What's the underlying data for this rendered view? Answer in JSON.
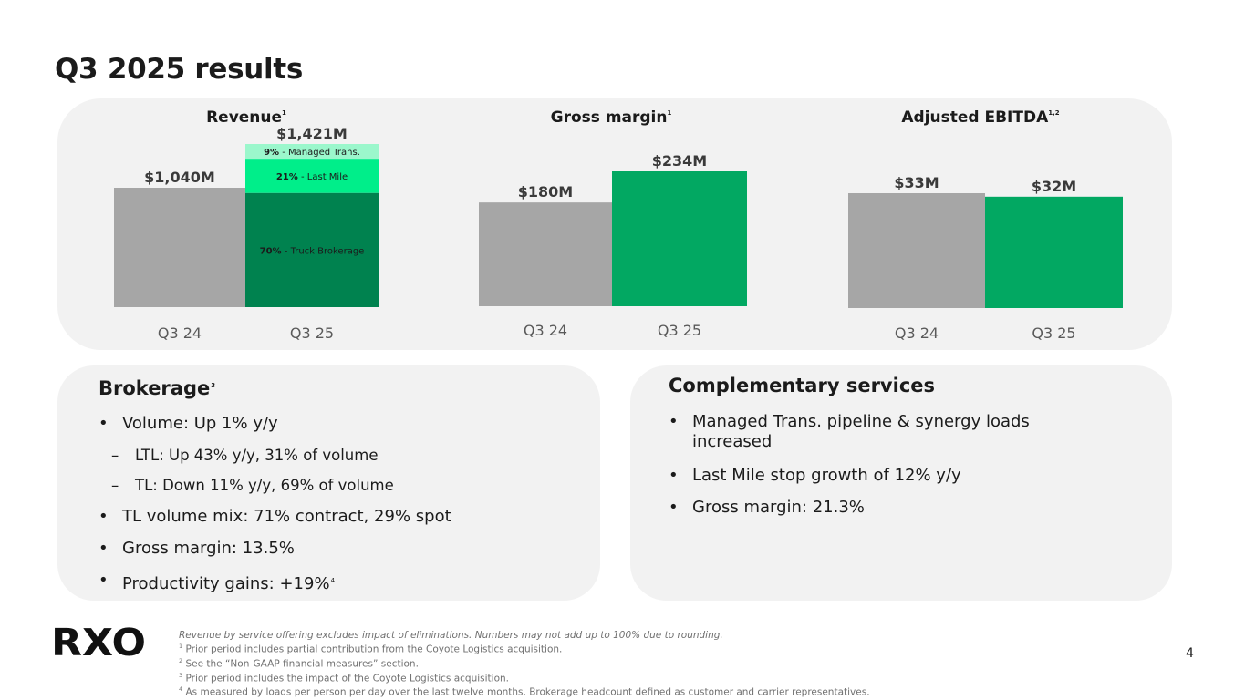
{
  "title": "Q3 2025 results",
  "colors": {
    "prior": "#a6a6a6",
    "current": "#02a862",
    "truck_brokerage": "#00824f",
    "last_mile": "#00ee8a",
    "managed_trans": "#9bf7cc",
    "panel": "#f2f2f2"
  },
  "chart_data": [
    {
      "type": "bar",
      "title": "Revenue",
      "title_sup": "1",
      "categories": [
        "Q3 24",
        "Q3 25"
      ],
      "values": [
        1040,
        1421
      ],
      "value_labels": [
        "$1,040M",
        "$1,421M"
      ],
      "unit": "$M",
      "stacked_breakdown": {
        "category": "Q3 25",
        "segments": [
          {
            "pct": 70,
            "pct_label": "70%",
            "name": "Truck Brokerage",
            "color": "#00824f"
          },
          {
            "pct": 21,
            "pct_label": "21%",
            "name": "Last Mile",
            "color": "#00ee8a"
          },
          {
            "pct": 9,
            "pct_label": "9%",
            "name": "Managed Trans.",
            "color": "#9bf7cc"
          }
        ]
      }
    },
    {
      "type": "bar",
      "title": "Gross margin",
      "title_sup": "1",
      "categories": [
        "Q3 24",
        "Q3 25"
      ],
      "values": [
        180,
        234
      ],
      "value_labels": [
        "$180M",
        "$234M"
      ],
      "unit": "$M"
    },
    {
      "type": "bar",
      "title": "Adjusted EBITDA",
      "title_sup": "1,2",
      "categories": [
        "Q3 24",
        "Q3 25"
      ],
      "values": [
        33,
        32
      ],
      "value_labels": [
        "$33M",
        "$32M"
      ],
      "unit": "$M"
    }
  ],
  "brokerage": {
    "title": "Brokerage",
    "title_sup": "3",
    "bullets": [
      {
        "text": "Volume: Up 1% y/y",
        "level": 1
      },
      {
        "text": "LTL: Up 43% y/y, 31% of volume",
        "level": 2
      },
      {
        "text": "TL: Down 11% y/y, 69% of volume",
        "level": 2
      },
      {
        "text": "TL volume mix: 71% contract, 29% spot",
        "level": 1
      },
      {
        "text": "Gross margin: 13.5%",
        "level": 1
      },
      {
        "text": "Productivity gains: +19%",
        "level": 1,
        "sup": "4"
      }
    ]
  },
  "complementary": {
    "title": "Complementary services",
    "bullets": [
      {
        "line1": "Managed Trans. pipeline & synergy loads",
        "line2": "increased"
      },
      {
        "line1": "Last Mile stop growth of 12% y/y"
      },
      {
        "line1": "Gross margin: 21.3%"
      }
    ]
  },
  "logo": {
    "text": "RXO",
    "icon": "rxo-logo"
  },
  "footnotes": {
    "lead": "Revenue by service offering excludes impact of eliminations. Numbers may not add up to 100% due to rounding.",
    "notes": [
      {
        "sup": "1",
        "text": "Prior period includes partial contribution from the Coyote Logistics acquisition."
      },
      {
        "sup": "2",
        "text": "See the “Non-GAAP financial measures” section."
      },
      {
        "sup": "3",
        "text": "Prior period includes the impact of the Coyote Logistics acquisition."
      },
      {
        "sup": "4",
        "text": "As measured by loads per person per day over the last twelve months. Brokerage headcount defined as customer and carrier representatives."
      }
    ]
  },
  "page_number": "4",
  "bullet_glyph": "•",
  "dash_glyph": "–",
  "segment_separator": " - "
}
